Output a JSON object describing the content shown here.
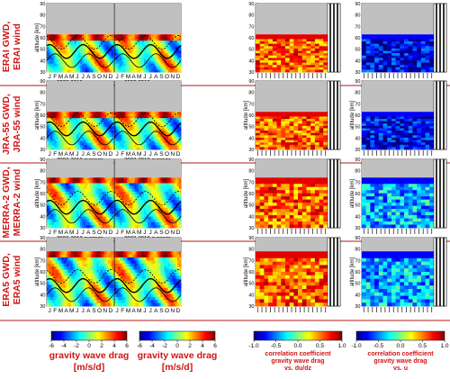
{
  "rows": [
    {
      "label_line1": "ERAI GWD,",
      "label_line2": "ERAI wind"
    },
    {
      "label_line1": "JRA-55 GWD,",
      "label_line2": "JRA-55 wind"
    },
    {
      "label_line1": "MERRA-2 GWD,",
      "label_line2": "MERRA-2 wind"
    },
    {
      "label_line1": "ERA5 GWD,",
      "label_line2": "ERA5 wind"
    }
  ],
  "months": [
    "J",
    "F",
    "M",
    "A",
    "M",
    "J",
    "J",
    "A",
    "S",
    "O",
    "N",
    "D"
  ],
  "average_label": "2002-2018 average",
  "altitude_label": "altitude [km]",
  "colorbars": [
    {
      "label_line1": "gravity wave drag",
      "label_line2": "[m/s/d]",
      "ticks": [
        "-6",
        "-4",
        "-2",
        "0",
        "2",
        "4",
        "6"
      ],
      "small_label": false
    },
    {
      "label_line1": "gravity wave drag",
      "label_line2": "[m/s/d]",
      "ticks": [
        "-6",
        "-4",
        "-2",
        "0",
        "2",
        "4",
        "6"
      ],
      "small_label": false
    },
    {
      "label_line1": "correlation coefficient",
      "label_line2": "gravity wave drag",
      "label_line3": "vs. du/dz",
      "ticks": [
        "-1.0",
        "-0.5",
        "0.0",
        "0.5",
        "1.0"
      ],
      "small_label": true
    },
    {
      "label_line1": "correlation coefficient",
      "label_line2": "gravity wave drag",
      "label_line3": "vs. u",
      "ticks": [
        "-1.0",
        "-0.5",
        "0.0",
        "0.5",
        "1.0"
      ],
      "small_label": true
    }
  ],
  "chart_data": [
    {
      "type": "heatmap",
      "panel": "seasonal cycle GWD (2 years)",
      "ylim": [
        30,
        90
      ],
      "yticks": [
        30,
        40,
        50,
        60,
        70,
        80,
        90
      ],
      "colorbar_range": [
        -6,
        6
      ],
      "grid": false
    },
    {
      "type": "heatmap",
      "panel": "correlation GWD vs du/dz (years 2002-2018)",
      "ylim": [
        30,
        90
      ],
      "yticks": [
        30,
        40,
        50,
        60,
        70,
        80,
        90
      ],
      "colorbar_range": [
        -1.0,
        1.0
      ],
      "grid": false
    },
    {
      "type": "heatmap",
      "panel": "correlation GWD vs u (years 2002-2018)",
      "ylim": [
        30,
        90
      ],
      "yticks": [
        30,
        40,
        50,
        60,
        70,
        80,
        90
      ],
      "colorbar_range": [
        -1.0,
        1.0
      ],
      "grid": false
    }
  ],
  "colors": {
    "label_red": "#d21414",
    "missing": "#c0c0c0"
  }
}
